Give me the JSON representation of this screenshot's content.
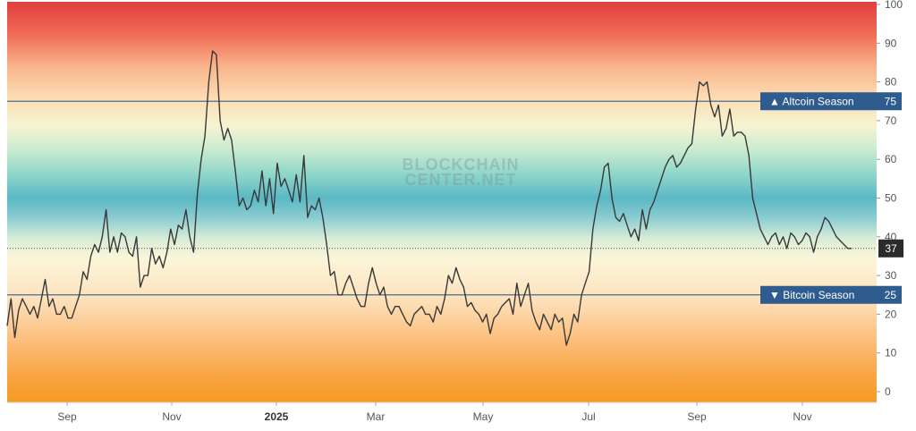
{
  "chart_data": {
    "type": "line",
    "y_ticks": [
      "0",
      "10",
      "20",
      "30",
      "40",
      "50",
      "60",
      "70",
      "80",
      "90",
      "100"
    ],
    "x_ticks": [
      {
        "label": "Sep",
        "bold": false
      },
      {
        "label": "Nov",
        "bold": false
      },
      {
        "label": "2025",
        "bold": true
      },
      {
        "label": "Mar",
        "bold": false
      },
      {
        "label": "May",
        "bold": false
      },
      {
        "label": "Jul",
        "bold": false
      },
      {
        "label": "Sep",
        "bold": false
      },
      {
        "label": "Nov",
        "bold": false
      }
    ],
    "ylim": [
      0,
      100
    ],
    "grid": false,
    "thresholds": [
      {
        "label": "▲ Altcoin Season",
        "value": 75
      },
      {
        "label": "▼ Bitcoin Season",
        "value": 25
      }
    ],
    "current": {
      "value": 37,
      "label": "37"
    },
    "watermark": [
      "BLOCKCHAIN",
      "CENTER.NET"
    ],
    "series": [
      {
        "values": [
          17,
          24,
          14,
          21,
          24,
          22,
          20,
          22,
          19,
          24,
          29,
          22,
          24,
          20,
          20,
          22,
          19,
          19,
          22,
          25,
          31,
          29,
          35,
          38,
          36,
          40,
          47,
          36,
          40,
          36,
          41,
          40,
          36,
          35,
          40,
          27,
          30,
          30,
          37,
          33,
          35,
          32,
          36,
          42,
          38,
          43,
          42,
          47,
          40,
          36,
          51,
          60,
          66,
          80,
          88,
          87,
          70,
          65,
          68,
          65,
          57,
          48,
          50,
          47,
          48,
          52,
          49,
          57,
          48,
          55,
          46,
          59,
          53,
          55,
          52,
          49,
          56,
          49,
          61,
          45,
          48,
          47,
          50,
          45,
          38,
          30,
          31,
          25,
          25,
          28,
          30,
          27,
          24,
          22,
          22,
          28,
          32,
          28,
          25,
          27,
          22,
          20,
          22,
          22,
          20,
          18,
          17,
          20,
          21,
          22,
          20,
          20,
          18,
          22,
          20,
          24,
          30,
          28,
          32,
          29,
          27,
          22,
          23,
          21,
          20,
          18,
          20,
          15,
          19,
          20,
          22,
          23,
          24,
          20,
          28,
          22,
          25,
          28,
          21,
          18,
          16,
          20,
          18,
          16,
          20,
          18,
          19,
          12,
          15,
          20,
          18,
          25,
          28,
          31,
          42,
          48,
          52,
          58,
          59,
          50,
          45,
          44,
          46,
          43,
          40,
          42,
          39,
          47,
          42,
          47,
          49,
          52,
          55,
          58,
          60,
          61,
          58,
          59,
          61,
          63,
          64,
          73,
          80,
          79,
          80,
          74,
          71,
          74,
          66,
          68,
          73,
          66,
          67,
          67,
          66,
          61,
          50,
          46,
          42,
          40,
          38,
          40,
          41,
          38,
          40,
          37,
          41,
          40,
          38,
          39,
          41,
          40,
          36,
          40,
          42,
          45,
          44,
          42,
          40,
          39,
          38,
          37,
          37
        ]
      }
    ]
  }
}
